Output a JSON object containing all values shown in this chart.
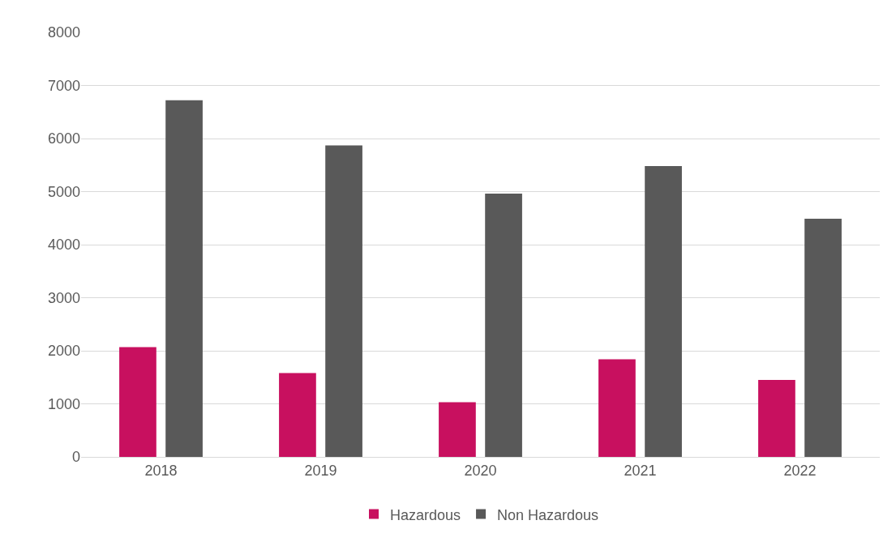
{
  "chart_data": {
    "type": "bar",
    "categories": [
      "2018",
      "2019",
      "2020",
      "2021",
      "2022"
    ],
    "series": [
      {
        "name": "Hazardous",
        "color": "#c8105f",
        "values": [
          2070,
          1580,
          1030,
          1840,
          1450
        ]
      },
      {
        "name": "Non Hazardous",
        "color": "#595959",
        "values": [
          6720,
          5870,
          4960,
          5480,
          4490
        ]
      }
    ],
    "ylim": [
      0,
      8000
    ],
    "yticks": [
      0,
      1000,
      2000,
      3000,
      4000,
      5000,
      6000,
      7000,
      8000
    ],
    "grid": "y",
    "legend": "bottom"
  }
}
